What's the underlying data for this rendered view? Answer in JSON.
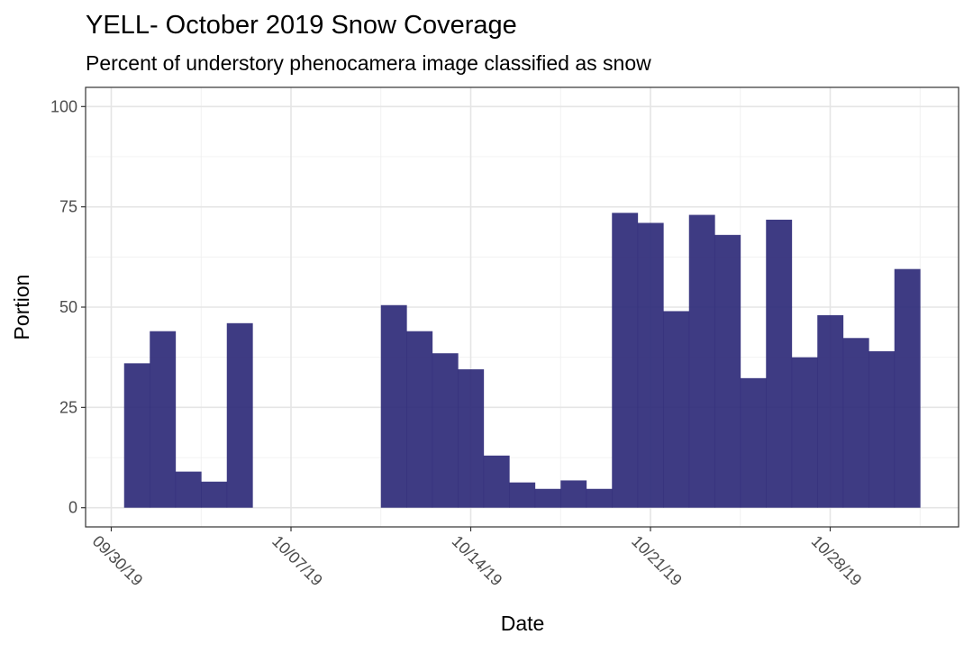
{
  "chart_data": {
    "type": "bar",
    "title": "YELL- October 2019 Snow Coverage",
    "subtitle": "Percent of understory phenocamera image classified as snow",
    "xlabel": "Date",
    "ylabel": "Portion",
    "ylim": [
      0,
      100
    ],
    "y_ticks": [
      0,
      25,
      50,
      75,
      100
    ],
    "x_ticks": [
      {
        "date": "2019-09-30",
        "label": "09/30/19"
      },
      {
        "date": "2019-10-07",
        "label": "10/07/19"
      },
      {
        "date": "2019-10-14",
        "label": "10/14/19"
      },
      {
        "date": "2019-10-21",
        "label": "10/21/19"
      },
      {
        "date": "2019-10-28",
        "label": "10/28/19"
      }
    ],
    "x_range": [
      "2019-09-29",
      "2019-11-02"
    ],
    "bin_days": 1,
    "grid": true,
    "bar_color": "#2e2a78",
    "bars": [
      {
        "start": "2019-09-30T12:00",
        "value": 36
      },
      {
        "start": "2019-10-01T12:00",
        "value": 44
      },
      {
        "start": "2019-10-02T12:00",
        "value": 9
      },
      {
        "start": "2019-10-03T12:00",
        "value": 6.5
      },
      {
        "start": "2019-10-04T12:00",
        "value": 46
      },
      {
        "start": "2019-10-10T12:00",
        "value": 50.5
      },
      {
        "start": "2019-10-11T12:00",
        "value": 44
      },
      {
        "start": "2019-10-12T12:00",
        "value": 38.5
      },
      {
        "start": "2019-10-13T12:00",
        "value": 34.5
      },
      {
        "start": "2019-10-14T12:00",
        "value": 13
      },
      {
        "start": "2019-10-15T12:00",
        "value": 6.3
      },
      {
        "start": "2019-10-16T12:00",
        "value": 4.7
      },
      {
        "start": "2019-10-17T12:00",
        "value": 6.8
      },
      {
        "start": "2019-10-18T12:00",
        "value": 4.7
      },
      {
        "start": "2019-10-19T12:00",
        "value": 73.5
      },
      {
        "start": "2019-10-20T12:00",
        "value": 71
      },
      {
        "start": "2019-10-21T12:00",
        "value": 49
      },
      {
        "start": "2019-10-22T12:00",
        "value": 73
      },
      {
        "start": "2019-10-23T12:00",
        "value": 68
      },
      {
        "start": "2019-10-24T12:00",
        "value": 32.3
      },
      {
        "start": "2019-10-25T12:00",
        "value": 71.8
      },
      {
        "start": "2019-10-26T12:00",
        "value": 37.5
      },
      {
        "start": "2019-10-27T12:00",
        "value": 48
      },
      {
        "start": "2019-10-28T12:00",
        "value": 42.3
      },
      {
        "start": "2019-10-29T12:00",
        "value": 39
      },
      {
        "start": "2019-10-30T12:00",
        "value": 59.5
      }
    ]
  }
}
